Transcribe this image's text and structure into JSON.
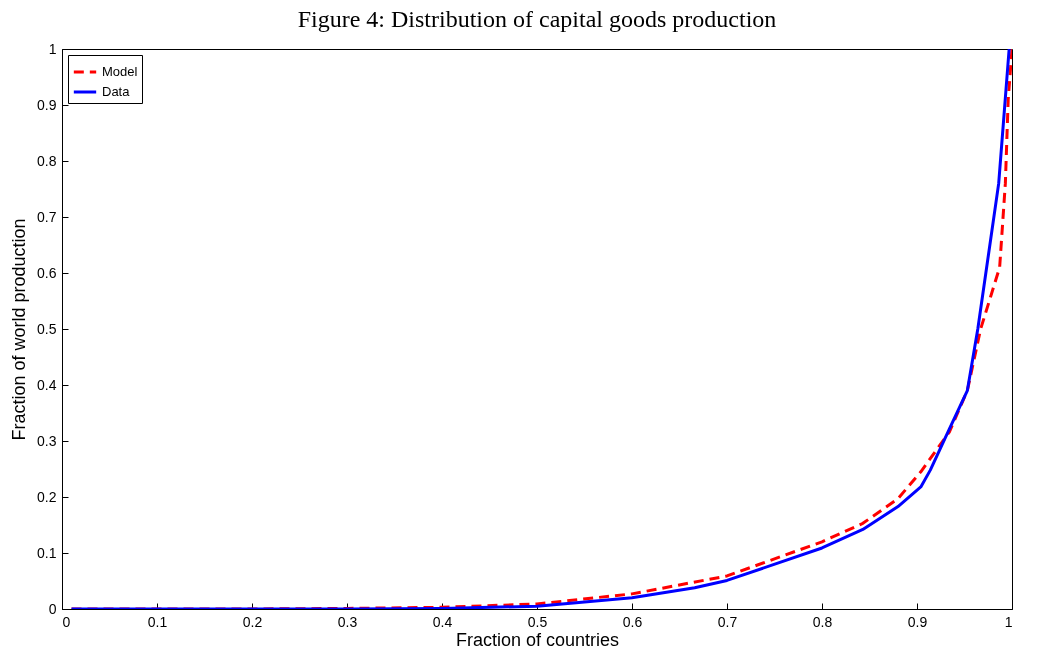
{
  "chart_data": {
    "type": "line",
    "title": "Figure 4:   Distribution of capital goods production",
    "xlabel": "Fraction of countries",
    "ylabel": "Fraction of world production",
    "xlim": [
      0,
      1
    ],
    "ylim": [
      0,
      1
    ],
    "xticks": [
      0,
      0.1,
      0.2,
      0.3,
      0.4,
      0.5,
      0.6,
      0.7,
      0.8,
      0.9,
      1
    ],
    "yticks": [
      0,
      0.1,
      0.2,
      0.3,
      0.4,
      0.5,
      0.6,
      0.7,
      0.8,
      0.9,
      1
    ],
    "grid": false,
    "legend": "top left",
    "marker": "none",
    "series": [
      {
        "name": "Model",
        "color": "#ff0000",
        "line_style": "dashed",
        "x": [
          0.01,
          0.2,
          0.3,
          0.4,
          0.5,
          0.6,
          0.7,
          0.8,
          0.843,
          0.88,
          0.904,
          0.934,
          0.953,
          0.967,
          0.987,
          0.993,
          0.996,
          1.0
        ],
        "values": [
          0,
          0,
          0.001,
          0.003,
          0.009,
          0.027,
          0.059,
          0.12,
          0.153,
          0.197,
          0.245,
          0.316,
          0.39,
          0.5,
          0.61,
          0.76,
          0.91,
          1.0
        ]
      },
      {
        "name": "Data",
        "color": "#0000ff",
        "line_style": "solid",
        "x": [
          0.01,
          0.2,
          0.3,
          0.4,
          0.5,
          0.6,
          0.666,
          0.7,
          0.8,
          0.843,
          0.88,
          0.904,
          0.914,
          0.934,
          0.953,
          0.964,
          0.986,
          0.997
        ],
        "values": [
          0,
          0,
          0,
          0.001,
          0.005,
          0.02,
          0.038,
          0.051,
          0.109,
          0.142,
          0.183,
          0.218,
          0.248,
          0.321,
          0.39,
          0.5,
          0.76,
          1.0
        ]
      }
    ]
  }
}
